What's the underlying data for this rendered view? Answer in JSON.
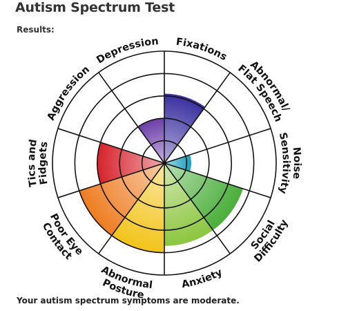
{
  "page": {
    "title": "Autism Spectrum Test",
    "results_label": "Results:",
    "summary": "Your autism spectrum symptoms are moderate."
  },
  "chart_data": {
    "type": "polar-area",
    "rings": 5,
    "max": 5,
    "grid": true,
    "categories": [
      {
        "lines": [
          "Fixations"
        ],
        "value": 3.1,
        "color": "#3a2fa0"
      },
      {
        "lines": [
          "Abnormal/",
          "Flat Speech"
        ],
        "value": 0,
        "color": "#2a50b0"
      },
      {
        "lines": [
          "Noise",
          "Sensitivity"
        ],
        "value": 1.2,
        "color": "#1a9fbf"
      },
      {
        "lines": [
          "Social",
          "Difficulty"
        ],
        "value": 3.7,
        "color": "#4aae3a"
      },
      {
        "lines": [
          "Anxiety"
        ],
        "value": 3.7,
        "color": "#8cc63f"
      },
      {
        "lines": [
          "Abnormal",
          "Posture"
        ],
        "value": 4.0,
        "color": "#f2c41a"
      },
      {
        "lines": [
          "Poor Eye",
          "Contact"
        ],
        "value": 4.0,
        "color": "#ee7d22"
      },
      {
        "lines": [
          "Tics and",
          "Fidgets"
        ],
        "value": 3.0,
        "color": "#d6232c"
      },
      {
        "lines": [
          "Aggression"
        ],
        "value": 0,
        "color": "#c2185b"
      },
      {
        "lines": [
          "Depression"
        ],
        "value": 2.0,
        "color": "#6b3fa8"
      }
    ]
  }
}
